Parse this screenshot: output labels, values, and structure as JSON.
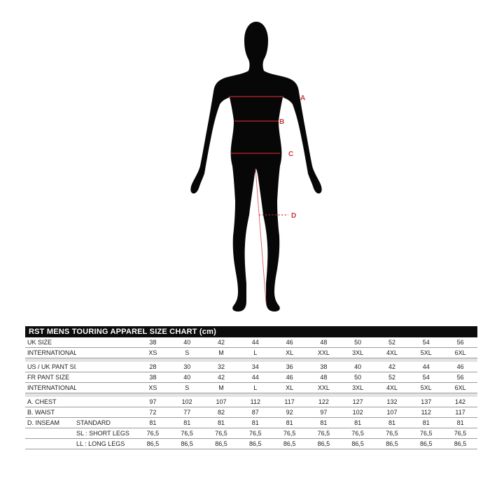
{
  "figure": {
    "silhouette_color": "#070707",
    "line_color": "#c2262d",
    "label_color": "#c8383e",
    "labels": {
      "a": "A",
      "b": "B",
      "c": "C",
      "d": "D"
    },
    "measures": {
      "a": "chest line",
      "b": "waist line",
      "c": "hip line",
      "d": "inseam knee line"
    }
  },
  "table": {
    "title": "RST MENS TOURING APPAREL SIZE CHART (cm)",
    "rows": [
      {
        "label": "UK SIZE",
        "sublabel": "",
        "values": [
          "38",
          "40",
          "42",
          "44",
          "46",
          "48",
          "50",
          "52",
          "54",
          "56"
        ]
      },
      {
        "label": "INTERNATIONAL SIZE",
        "sublabel": "",
        "values": [
          "XS",
          "S",
          "M",
          "L",
          "XL",
          "XXL",
          "3XL",
          "4XL",
          "5XL",
          "6XL"
        ]
      },
      {
        "spacer": true
      },
      {
        "label": "US / UK  PANT SIZE",
        "sublabel": "",
        "values": [
          "28",
          "30",
          "32",
          "34",
          "36",
          "38",
          "40",
          "42",
          "44",
          "46"
        ]
      },
      {
        "label": "FR PANT SIZE",
        "sublabel": "",
        "values": [
          "38",
          "40",
          "42",
          "44",
          "46",
          "48",
          "50",
          "52",
          "54",
          "56"
        ]
      },
      {
        "label": "INTERNATIONAL SIZE",
        "sublabel": "",
        "values": [
          "XS",
          "S",
          "M",
          "L",
          "XL",
          "XXL",
          "3XL",
          "4XL",
          "5XL",
          "6XL"
        ]
      },
      {
        "spacer": true
      },
      {
        "label": "A. CHEST",
        "sublabel": "",
        "values": [
          "97",
          "102",
          "107",
          "112",
          "117",
          "122",
          "127",
          "132",
          "137",
          "142"
        ]
      },
      {
        "label": "B. WAIST",
        "sublabel": "",
        "values": [
          "72",
          "77",
          "82",
          "87",
          "92",
          "97",
          "102",
          "107",
          "112",
          "117"
        ]
      },
      {
        "label": "D. INSEAM",
        "sublabel": "STANDARD",
        "values": [
          "81",
          "81",
          "81",
          "81",
          "81",
          "81",
          "81",
          "81",
          "81",
          "81"
        ]
      },
      {
        "label": "",
        "sublabel": "SL : SHORT LEGS",
        "values": [
          "76,5",
          "76,5",
          "76,5",
          "76,5",
          "76,5",
          "76,5",
          "76,5",
          "76,5",
          "76,5",
          "76,5"
        ]
      },
      {
        "label": "",
        "sublabel": "LL : LONG LEGS",
        "values": [
          "86,5",
          "86,5",
          "86,5",
          "86,5",
          "86,5",
          "86,5",
          "86,5",
          "86,5",
          "86,5",
          "86,5"
        ]
      }
    ]
  }
}
